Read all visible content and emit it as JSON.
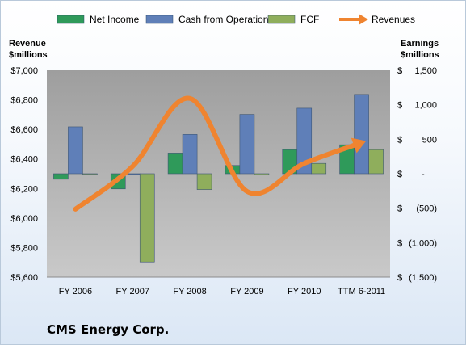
{
  "company": "CMS Energy Corp.",
  "colors": {
    "net_income": "#2f9a5a",
    "cash_from_operations": "#5f7fb8",
    "fcf": "#8fae5c",
    "revenues": "#ef8430",
    "plot_bg": "#b5b5b5"
  },
  "chart_data": {
    "type": "bar",
    "categories": [
      "FY 2006",
      "FY 2007",
      "FY 2008",
      "FY 2009",
      "FY 2010",
      "TTM 6-2011"
    ],
    "series": [
      {
        "name": "Net Income",
        "axis": "right",
        "type": "bar",
        "values": [
          -80,
          -220,
          300,
          120,
          350,
          420
        ]
      },
      {
        "name": "Cash from Operations",
        "axis": "right",
        "type": "bar",
        "values": [
          680,
          0,
          570,
          860,
          950,
          1150
        ]
      },
      {
        "name": "FCF",
        "axis": "right",
        "type": "bar",
        "values": [
          -10,
          -1280,
          -230,
          -15,
          150,
          350
        ]
      },
      {
        "name": "Revenues",
        "axis": "left",
        "type": "line",
        "values": [
          6060,
          6350,
          6810,
          6180,
          6370,
          6510
        ]
      }
    ],
    "left_axis": {
      "label_line1": "Revenue",
      "label_line2": "$millions",
      "ylim": [
        5600,
        7000
      ],
      "ticks": [
        {
          "v": 7000,
          "t": "$7,000"
        },
        {
          "v": 6800,
          "t": "$6,800"
        },
        {
          "v": 6600,
          "t": "$6,600"
        },
        {
          "v": 6400,
          "t": "$6,400"
        },
        {
          "v": 6200,
          "t": "$6,200"
        },
        {
          "v": 6000,
          "t": "$6,000"
        },
        {
          "v": 5800,
          "t": "$5,800"
        },
        {
          "v": 5600,
          "t": "$5,600"
        }
      ]
    },
    "right_axis": {
      "label_line1": "Earnings",
      "label_line2": "$millions",
      "ylim": [
        -1500,
        1500
      ],
      "ticks": [
        {
          "v": 1500,
          "t": "$1,500"
        },
        {
          "v": 1000,
          "t": "$1,000"
        },
        {
          "v": 500,
          "t": "$500"
        },
        {
          "v": 0,
          "t": "$-"
        },
        {
          "v": -500,
          "t": "$(500)"
        },
        {
          "v": -1000,
          "t": "$(1,000)"
        },
        {
          "v": -1500,
          "t": "$(1,500)"
        }
      ]
    },
    "legend_position": "top",
    "grid": false
  }
}
